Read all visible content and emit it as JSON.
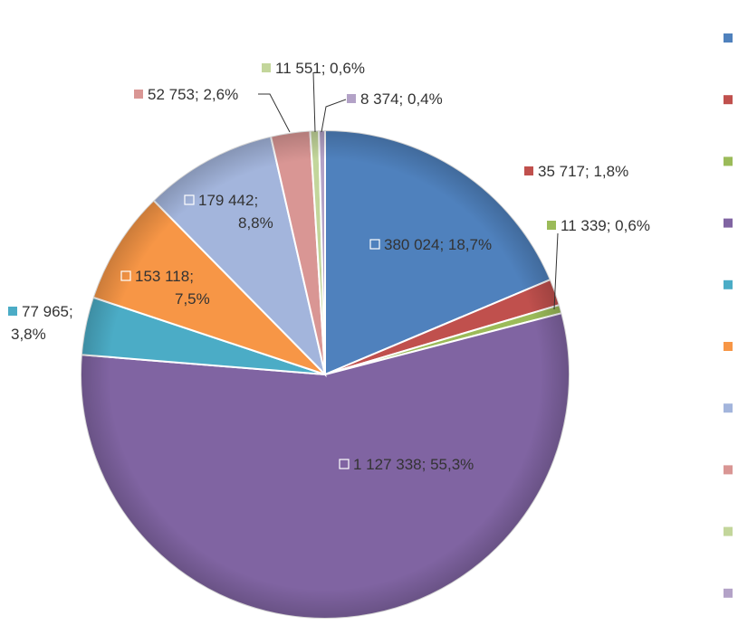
{
  "chart_data": {
    "type": "pie",
    "title": "",
    "legend_position": "right",
    "slices": [
      {
        "value": 380024,
        "label": "380 024; 18,7%",
        "color": "#4F81BD"
      },
      {
        "value": 35717,
        "label": "35 717; 1,8%",
        "color": "#C0504D"
      },
      {
        "value": 11339,
        "label": "11 339; 0,6%",
        "color": "#9BBB59"
      },
      {
        "value": 1127338,
        "label": "1 127 338; 55,3%",
        "color": "#8064A2"
      },
      {
        "value": 77965,
        "label": "77 965; 3,8%",
        "color": "#4BACC6"
      },
      {
        "value": 153118,
        "label": "153 118; 7,5%",
        "color": "#F79646"
      },
      {
        "value": 179442,
        "label": "179 442; 8,8%",
        "color": "#A3B5DC"
      },
      {
        "value": 52753,
        "label": "52 753; 2,6%",
        "color": "#D99694"
      },
      {
        "value": 11551,
        "label": "11 551; 0,6%",
        "color": "#C3D69B"
      },
      {
        "value": 8374,
        "label": "8 374; 0,4%",
        "color": "#B3A2C7"
      }
    ]
  }
}
